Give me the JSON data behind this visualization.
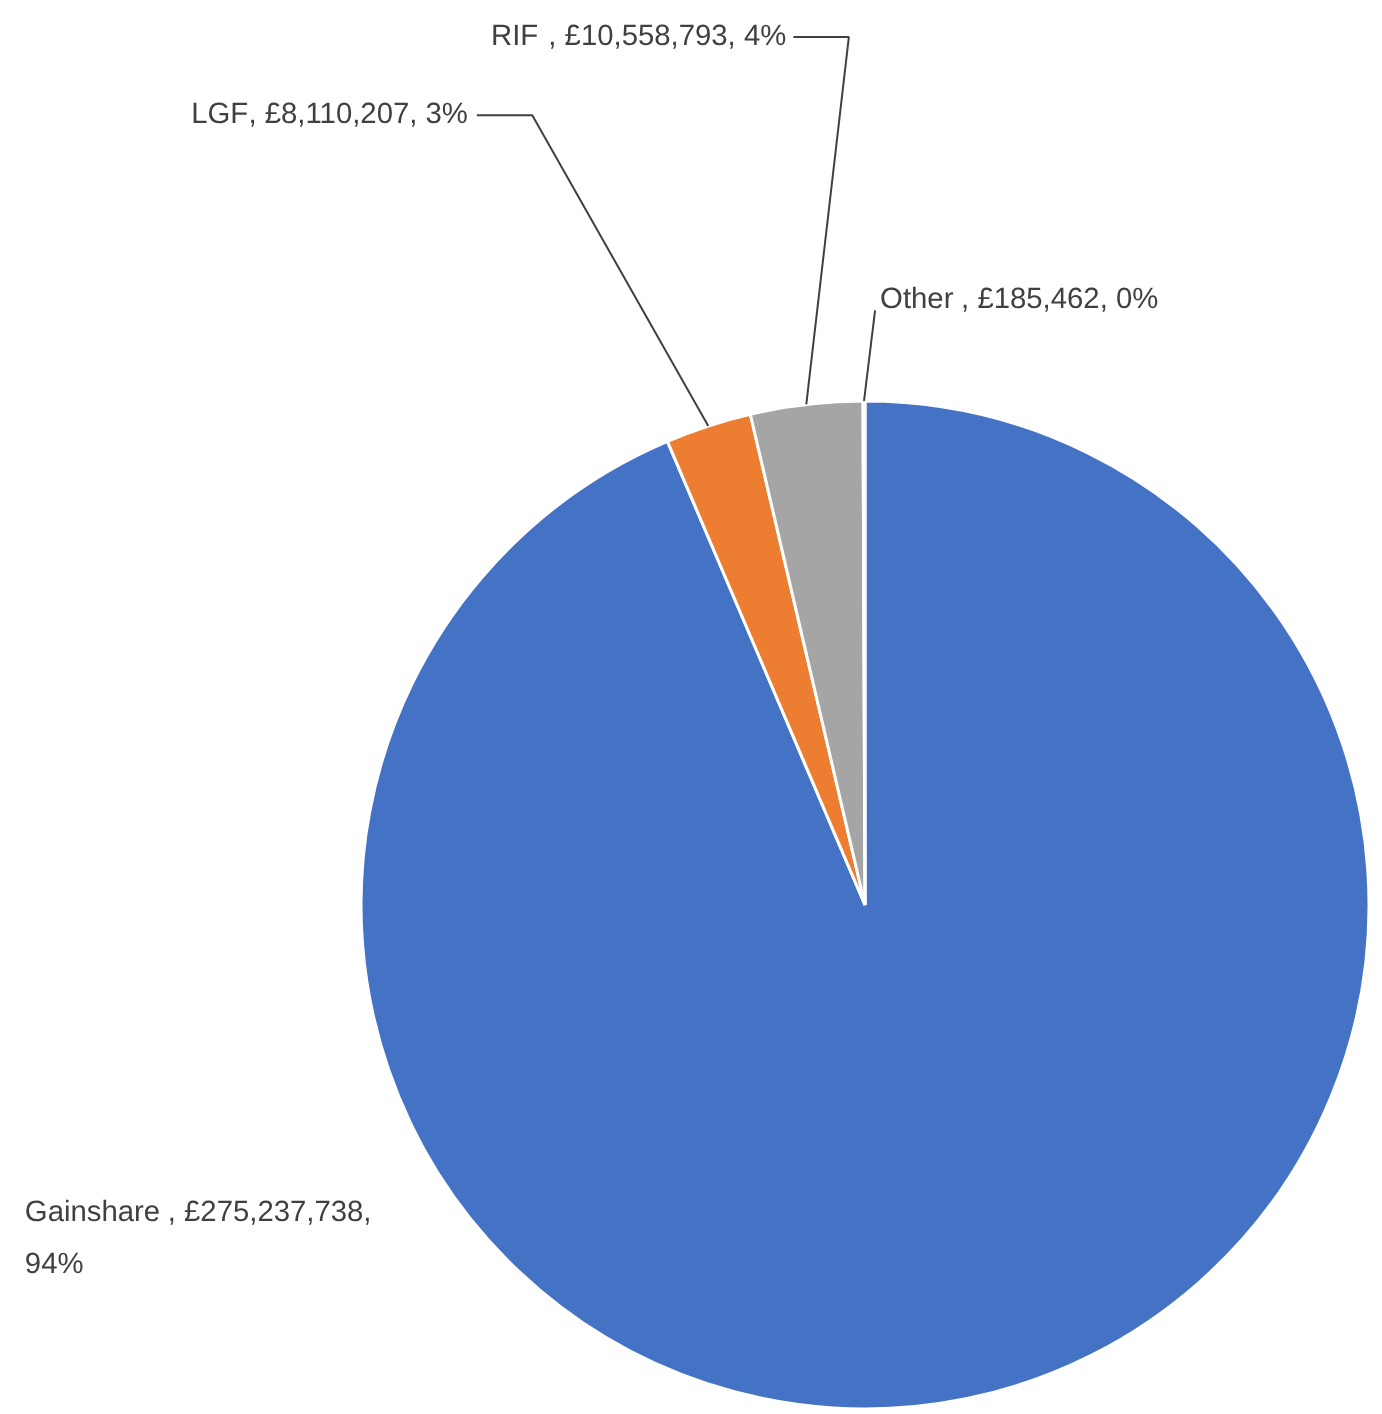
{
  "chart_data": {
    "type": "pie",
    "categories": [
      "Gainshare",
      "LGF",
      "RIF",
      "Other"
    ],
    "values": [
      275237738,
      8110207,
      10558793,
      185462
    ],
    "colors": [
      "#4472c4",
      "#ed7d31",
      "#a5a5a5",
      "#ffc000"
    ],
    "value_labels": [
      ", £275,237,738,\n94%",
      ", £8,110,207, 3%",
      ", £10,558,793, 4%",
      ", £185,462, 0%"
    ],
    "legend": false
  }
}
